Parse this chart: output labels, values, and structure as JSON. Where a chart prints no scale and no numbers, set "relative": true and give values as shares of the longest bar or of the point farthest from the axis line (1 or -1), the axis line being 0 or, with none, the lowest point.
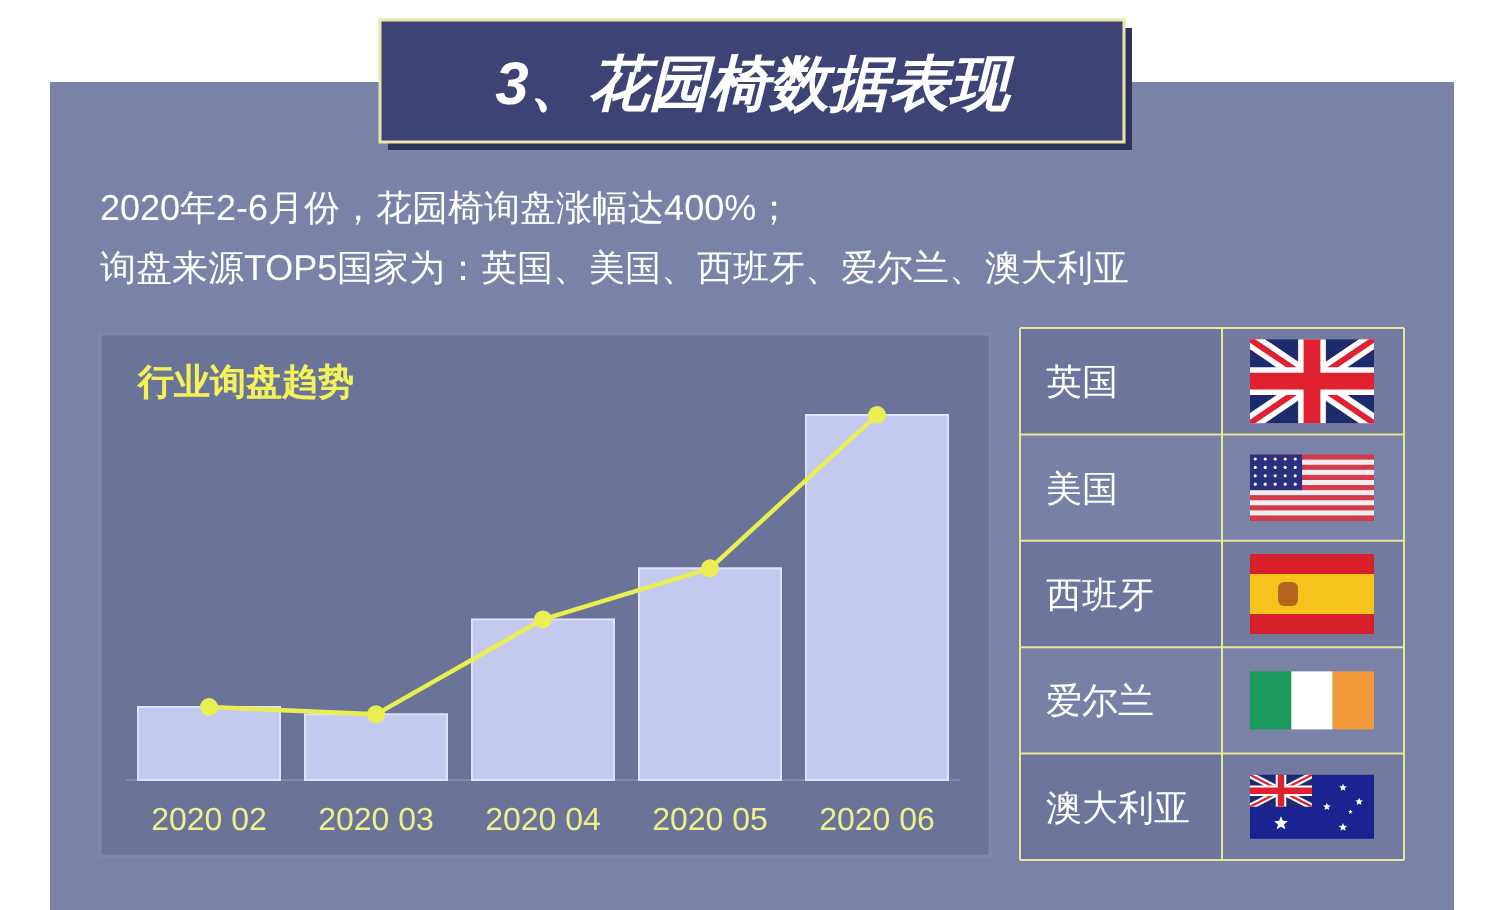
{
  "chart_data": [
    {
      "type": "bar",
      "title": "3、花园椅数据表现",
      "subtitle": "行业询盘趋势",
      "annotations": [
        "2020年2-6月份，花园椅询盘涨幅达400%；",
        "询盘来源TOP5国家为：英国、美国、西班牙、爱尔兰、澳大利亚"
      ],
      "categories": [
        "2020 02",
        "2020 03",
        "2020 04",
        "2020 05",
        "2020 06"
      ],
      "relative": true,
      "marker": "circle",
      "series": [
        {
          "type": "bar",
          "color": "#c4c9ef",
          "values": [
            0.2,
            0.18,
            0.44,
            0.58,
            1
          ]
        },
        {
          "type": "line",
          "color": "#e9ef52",
          "values": [
            0.2,
            0.18,
            0.44,
            0.58,
            1
          ]
        }
      ]
    },
    {
      "type": "other",
      "annotations": [
        "英国",
        "美国",
        "西班牙",
        "爱尔兰",
        "澳大利亚"
      ]
    }
  ]
}
